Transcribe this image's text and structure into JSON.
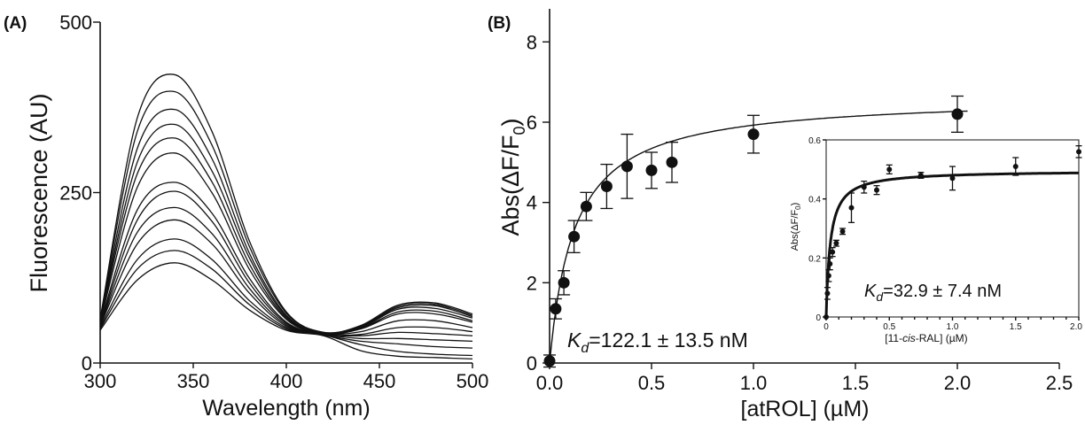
{
  "chart_data": [
    {
      "type": "line",
      "panel_label": "(A)",
      "xlabel": "Wavelength (nm)",
      "ylabel": "Fluorescence (AU)",
      "xlim": [
        300,
        500
      ],
      "ylim": [
        0,
        500
      ],
      "x_ticks": [
        "300",
        "350",
        "400",
        "450",
        "500"
      ],
      "y_ticks": [
        "0",
        "250",
        "500"
      ],
      "x_tick_values": [
        300,
        350,
        400,
        450,
        500
      ],
      "y_tick_values": [
        0,
        250,
        500
      ],
      "x": [
        300,
        320,
        340,
        360,
        380,
        400,
        420,
        440,
        460,
        480,
        500
      ],
      "series": [
        {
          "values": [
            65,
            360,
            423,
            340,
            180,
            75,
            45,
            55,
            85,
            88,
            72
          ]
        },
        {
          "values": [
            64,
            340,
            398,
            320,
            172,
            73,
            45,
            54,
            83,
            86,
            70
          ]
        },
        {
          "values": [
            63,
            315,
            372,
            300,
            162,
            70,
            44,
            53,
            81,
            84,
            68
          ]
        },
        {
          "values": [
            62,
            295,
            350,
            282,
            155,
            68,
            44,
            52,
            79,
            80,
            66
          ]
        },
        {
          "values": [
            61,
            278,
            330,
            266,
            146,
            66,
            44,
            51,
            75,
            76,
            62
          ]
        },
        {
          "values": [
            60,
            258,
            308,
            250,
            138,
            64,
            43,
            50,
            72,
            72,
            60
          ]
        },
        {
          "values": [
            58,
            225,
            265,
            220,
            125,
            60,
            43,
            46,
            62,
            62,
            52
          ]
        },
        {
          "values": [
            56,
            210,
            252,
            208,
            118,
            58,
            42,
            42,
            52,
            52,
            46
          ]
        },
        {
          "values": [
            55,
            192,
            228,
            190,
            110,
            56,
            42,
            40,
            45,
            43,
            40
          ]
        },
        {
          "values": [
            54,
            175,
            210,
            175,
            103,
            54,
            42,
            36,
            36,
            34,
            32
          ]
        },
        {
          "values": [
            52,
            152,
            182,
            152,
            92,
            52,
            41,
            32,
            28,
            24,
            22
          ]
        },
        {
          "values": [
            50,
            138,
            165,
            138,
            86,
            50,
            41,
            27,
            17,
            13,
            11
          ]
        },
        {
          "values": [
            48,
            122,
            147,
            122,
            78,
            48,
            40,
            18,
            10,
            8,
            6
          ]
        }
      ]
    },
    {
      "type": "scatter",
      "panel_label": "(B)",
      "xlabel": "[atROL] (µM)",
      "ylabel": "Abs(ΔF/F",
      "ylabel_sub": "0",
      "ylabel_close": ")",
      "xlim": [
        0,
        2.5
      ],
      "ylim": [
        0,
        9
      ],
      "x_ticks": [
        "0.0",
        "0.5",
        "1.0",
        "1.5",
        "2.0",
        "2.5"
      ],
      "y_ticks": [
        "0",
        "2",
        "4",
        "6",
        "8"
      ],
      "x_tick_values": [
        0,
        0.5,
        1.0,
        1.5,
        2.0,
        2.5
      ],
      "y_tick_values": [
        0,
        2,
        4,
        6,
        8
      ],
      "points": [
        {
          "x": 0.0,
          "y": 0.05,
          "err": 0.15
        },
        {
          "x": 0.03,
          "y": 1.35,
          "err": 0.25
        },
        {
          "x": 0.07,
          "y": 2.0,
          "err": 0.3
        },
        {
          "x": 0.12,
          "y": 3.15,
          "err": 0.4
        },
        {
          "x": 0.18,
          "y": 3.9,
          "err": 0.35
        },
        {
          "x": 0.28,
          "y": 4.4,
          "err": 0.55
        },
        {
          "x": 0.38,
          "y": 4.9,
          "err": 0.8
        },
        {
          "x": 0.5,
          "y": 4.8,
          "err": 0.45
        },
        {
          "x": 0.6,
          "y": 5.0,
          "err": 0.5
        },
        {
          "x": 1.0,
          "y": 5.7,
          "err": 0.47
        },
        {
          "x": 2.0,
          "y": 6.2,
          "err": 0.45
        }
      ],
      "fit": {
        "model": "hyperbolic",
        "Bmax": 6.65,
        "Kd_uM": 0.1221,
        "x_end": 2.05
      },
      "annotation": {
        "symbol": "K",
        "subscript": "d",
        "text": "=122.1 ± 13.5 nM"
      }
    },
    {
      "type": "scatter",
      "role": "inset",
      "xlabel_pre": "[11-",
      "xlabel_italic": "cis",
      "xlabel_post": "-RAL] (µM)",
      "ylabel": "Abs(ΔF/F",
      "ylabel_sub": "0",
      "ylabel_close": ")",
      "xlim": [
        0,
        2.0
      ],
      "ylim": [
        0,
        0.6
      ],
      "x_ticks": [
        "0",
        "0.5",
        "1.0",
        "1.5",
        "2.0"
      ],
      "y_ticks": [
        "0",
        "0.2",
        "0.4",
        "0.6"
      ],
      "x_tick_values": [
        0,
        0.5,
        1.0,
        1.5,
        2.0
      ],
      "y_tick_values": [
        0,
        0.2,
        0.4,
        0.6
      ],
      "points": [
        {
          "x": 0.0,
          "y": 0.0,
          "err": 0
        },
        {
          "x": 0.01,
          "y": 0.08,
          "err": 0.02
        },
        {
          "x": 0.02,
          "y": 0.14,
          "err": 0.02
        },
        {
          "x": 0.03,
          "y": 0.18,
          "err": 0.02
        },
        {
          "x": 0.05,
          "y": 0.22,
          "err": 0.015
        },
        {
          "x": 0.08,
          "y": 0.25,
          "err": 0.01
        },
        {
          "x": 0.13,
          "y": 0.29,
          "err": 0.01
        },
        {
          "x": 0.2,
          "y": 0.37,
          "err": 0.05
        },
        {
          "x": 0.3,
          "y": 0.44,
          "err": 0.02
        },
        {
          "x": 0.4,
          "y": 0.43,
          "err": 0.015
        },
        {
          "x": 0.5,
          "y": 0.5,
          "err": 0.015
        },
        {
          "x": 0.75,
          "y": 0.48,
          "err": 0.01
        },
        {
          "x": 1.0,
          "y": 0.47,
          "err": 0.04
        },
        {
          "x": 1.5,
          "y": 0.51,
          "err": 0.03
        },
        {
          "x": 2.0,
          "y": 0.56,
          "err": 0.02
        }
      ],
      "fit": {
        "model": "hyperbolic",
        "Bmax": 0.496,
        "Kd_uM": 0.0329,
        "x_end": 2.0
      },
      "annotation": {
        "symbol": "K",
        "subscript": "d",
        "text": "=32.9 ± 7.4 nM"
      }
    }
  ]
}
